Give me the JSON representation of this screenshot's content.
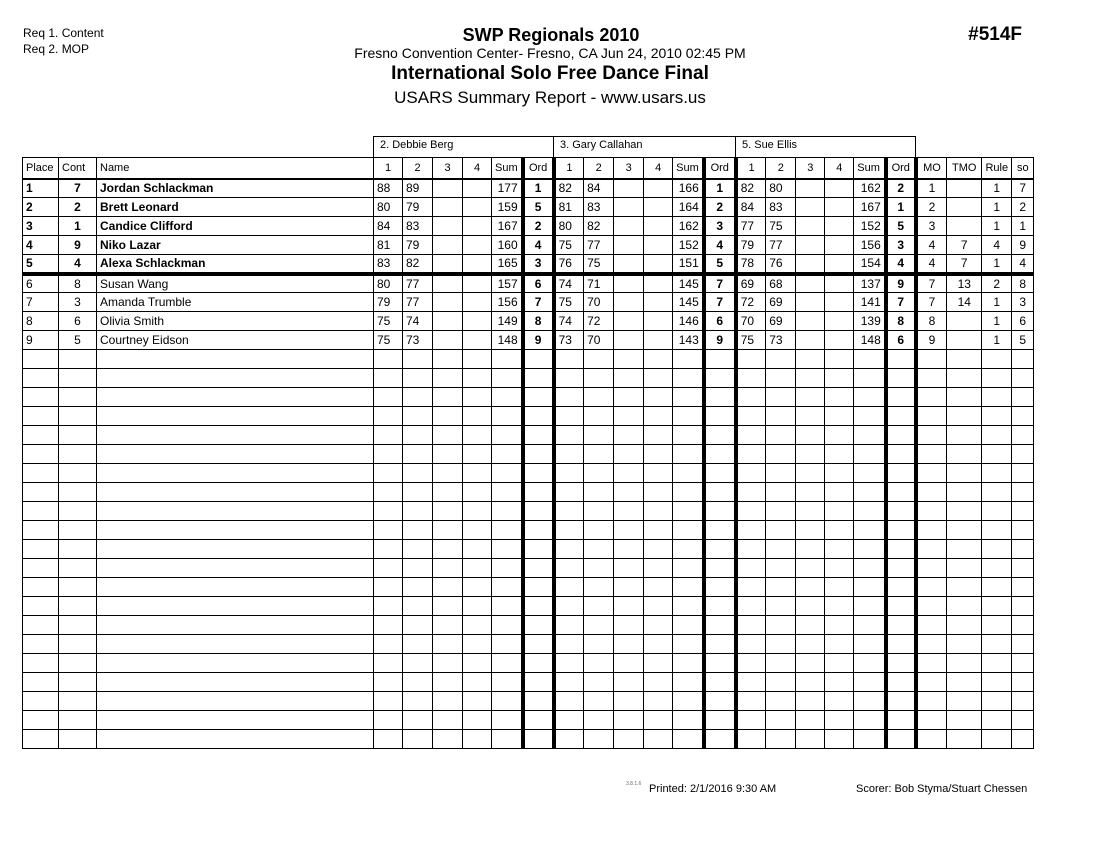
{
  "requirements": [
    "Req 1. Content",
    "Req 2. MOP"
  ],
  "header": {
    "event": "SWP Regionals 2010",
    "venue": "Fresno Convention Center-  Fresno, CA  Jun 24, 2010  02:45 PM",
    "title": "International Solo Free Dance Final",
    "subtitle": "USARS Summary Report - www.usars.us",
    "code": "#514F"
  },
  "judges": [
    "2.  Debbie Berg",
    "3.  Gary Callahan",
    "5.  Sue Ellis"
  ],
  "columns": {
    "place": "Place",
    "cont": "Cont",
    "name": "Name",
    "scores": [
      "1",
      "2",
      "3",
      "4"
    ],
    "sum": "Sum",
    "ord": "Ord",
    "mo": "MO",
    "tmo": "TMO",
    "rule": "Rule",
    "so": "so"
  },
  "rows": [
    {
      "place": "1",
      "cont": "7",
      "name": "Jordan Schlackman",
      "j": [
        [
          "88",
          "89",
          "",
          "",
          "177",
          "1"
        ],
        [
          "82",
          "84",
          "",
          "",
          "166",
          "1"
        ],
        [
          "82",
          "80",
          "",
          "",
          "162",
          "2"
        ]
      ],
      "mo": "1",
      "tmo": "",
      "rule": "1",
      "so": "7"
    },
    {
      "place": "2",
      "cont": "2",
      "name": "Brett Leonard",
      "j": [
        [
          "80",
          "79",
          "",
          "",
          "159",
          "5"
        ],
        [
          "81",
          "83",
          "",
          "",
          "164",
          "2"
        ],
        [
          "84",
          "83",
          "",
          "",
          "167",
          "1"
        ]
      ],
      "mo": "2",
      "tmo": "",
      "rule": "1",
      "so": "2"
    },
    {
      "place": "3",
      "cont": "1",
      "name": "Candice Clifford",
      "j": [
        [
          "84",
          "83",
          "",
          "",
          "167",
          "2"
        ],
        [
          "80",
          "82",
          "",
          "",
          "162",
          "3"
        ],
        [
          "77",
          "75",
          "",
          "",
          "152",
          "5"
        ]
      ],
      "mo": "3",
      "tmo": "",
      "rule": "1",
      "so": "1"
    },
    {
      "place": "4",
      "cont": "9",
      "name": "Niko Lazar",
      "j": [
        [
          "81",
          "79",
          "",
          "",
          "160",
          "4"
        ],
        [
          "75",
          "77",
          "",
          "",
          "152",
          "4"
        ],
        [
          "79",
          "77",
          "",
          "",
          "156",
          "3"
        ]
      ],
      "mo": "4",
      "tmo": "7",
      "rule": "4",
      "so": "9"
    },
    {
      "place": "5",
      "cont": "4",
      "name": "Alexa Schlackman",
      "j": [
        [
          "83",
          "82",
          "",
          "",
          "165",
          "3"
        ],
        [
          "76",
          "75",
          "",
          "",
          "151",
          "5"
        ],
        [
          "78",
          "76",
          "",
          "",
          "154",
          "4"
        ]
      ],
      "mo": "4",
      "tmo": "7",
      "rule": "1",
      "so": "4"
    },
    {
      "place": "6",
      "cont": "8",
      "name": "Susan Wang",
      "j": [
        [
          "80",
          "77",
          "",
          "",
          "157",
          "6"
        ],
        [
          "74",
          "71",
          "",
          "",
          "145",
          "7"
        ],
        [
          "69",
          "68",
          "",
          "",
          "137",
          "9"
        ]
      ],
      "mo": "7",
      "tmo": "13",
      "rule": "2",
      "so": "8"
    },
    {
      "place": "7",
      "cont": "3",
      "name": "Amanda Trumble",
      "j": [
        [
          "79",
          "77",
          "",
          "",
          "156",
          "7"
        ],
        [
          "75",
          "70",
          "",
          "",
          "145",
          "7"
        ],
        [
          "72",
          "69",
          "",
          "",
          "141",
          "7"
        ]
      ],
      "mo": "7",
      "tmo": "14",
      "rule": "1",
      "so": "3"
    },
    {
      "place": "8",
      "cont": "6",
      "name": "Olivia Smith",
      "j": [
        [
          "75",
          "74",
          "",
          "",
          "149",
          "8"
        ],
        [
          "74",
          "72",
          "",
          "",
          "146",
          "6"
        ],
        [
          "70",
          "69",
          "",
          "",
          "139",
          "8"
        ]
      ],
      "mo": "8",
      "tmo": "",
      "rule": "1",
      "so": "6"
    },
    {
      "place": "9",
      "cont": "5",
      "name": "Courtney Eidson",
      "j": [
        [
          "75",
          "73",
          "",
          "",
          "148",
          "9"
        ],
        [
          "73",
          "70",
          "",
          "",
          "143",
          "9"
        ],
        [
          "75",
          "73",
          "",
          "",
          "148",
          "6"
        ]
      ],
      "mo": "9",
      "tmo": "",
      "rule": "1",
      "so": "5"
    }
  ],
  "footer": {
    "version": "3.8.1.6",
    "printed": "Printed:  2/1/2016  9:30 AM",
    "scorer": "Scorer:   Bob Styma/Stuart Chessen"
  }
}
